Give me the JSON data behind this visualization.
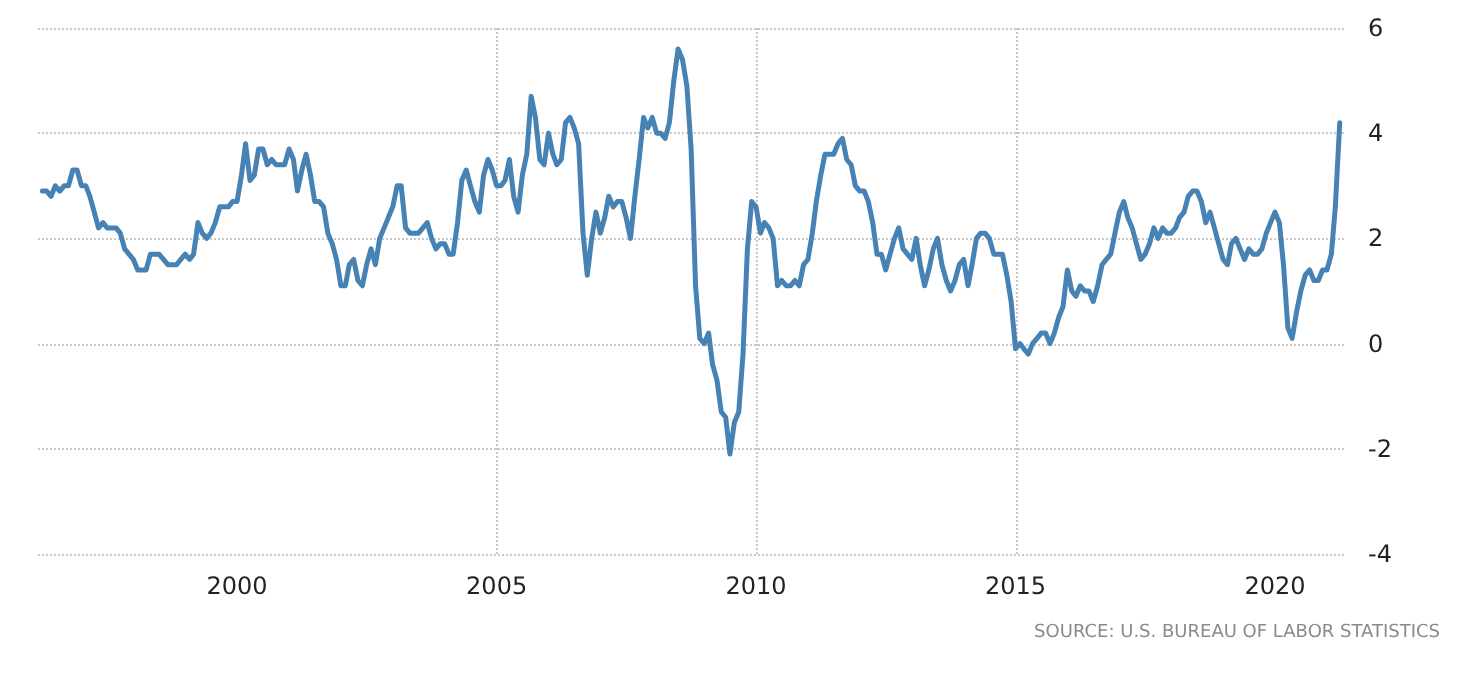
{
  "chart_data": {
    "type": "line",
    "color": "#4682b4",
    "line_style": "solid",
    "marker": "none",
    "grid": true,
    "annotations": [
      "SOURCE: U.S. BUREAU OF LABOR STATISTICS"
    ],
    "xlim": [
      "1996-03",
      "2021-05"
    ],
    "xticks": [
      "2000",
      "2005",
      "2010",
      "2015",
      "2020"
    ],
    "ylim": [
      -4,
      6
    ],
    "yticks": [
      -4,
      -2,
      0,
      2,
      4,
      6
    ],
    "x": [
      "1996-04",
      "1996-05",
      "1996-06",
      "1996-07",
      "1996-08",
      "1996-09",
      "1996-10",
      "1996-11",
      "1996-12",
      "1997-01",
      "1997-02",
      "1997-03",
      "1997-04",
      "1997-05",
      "1997-06",
      "1997-07",
      "1997-08",
      "1997-09",
      "1997-10",
      "1997-11",
      "1997-12",
      "1998-01",
      "1998-02",
      "1998-03",
      "1998-04",
      "1998-05",
      "1998-06",
      "1998-07",
      "1998-08",
      "1998-09",
      "1998-10",
      "1998-11",
      "1998-12",
      "1999-01",
      "1999-02",
      "1999-03",
      "1999-04",
      "1999-05",
      "1999-06",
      "1999-07",
      "1999-08",
      "1999-09",
      "1999-10",
      "1999-11",
      "1999-12",
      "2000-01",
      "2000-02",
      "2000-03",
      "2000-04",
      "2000-05",
      "2000-06",
      "2000-07",
      "2000-08",
      "2000-09",
      "2000-10",
      "2000-11",
      "2000-12",
      "2001-01",
      "2001-02",
      "2001-03",
      "2001-04",
      "2001-05",
      "2001-06",
      "2001-07",
      "2001-08",
      "2001-09",
      "2001-10",
      "2001-11",
      "2001-12",
      "2002-01",
      "2002-02",
      "2002-03",
      "2002-04",
      "2002-05",
      "2002-06",
      "2002-07",
      "2002-08",
      "2002-09",
      "2002-10",
      "2002-11",
      "2002-12",
      "2003-01",
      "2003-02",
      "2003-03",
      "2003-04",
      "2003-05",
      "2003-06",
      "2003-07",
      "2003-08",
      "2003-09",
      "2003-10",
      "2003-11",
      "2003-12",
      "2004-01",
      "2004-02",
      "2004-03",
      "2004-04",
      "2004-05",
      "2004-06",
      "2004-07",
      "2004-08",
      "2004-09",
      "2004-10",
      "2004-11",
      "2004-12",
      "2005-01",
      "2005-02",
      "2005-03",
      "2005-04",
      "2005-05",
      "2005-06",
      "2005-07",
      "2005-08",
      "2005-09",
      "2005-10",
      "2005-11",
      "2005-12",
      "2006-01",
      "2006-02",
      "2006-03",
      "2006-04",
      "2006-05",
      "2006-06",
      "2006-07",
      "2006-08",
      "2006-09",
      "2006-10",
      "2006-11",
      "2006-12",
      "2007-01",
      "2007-02",
      "2007-03",
      "2007-04",
      "2007-05",
      "2007-06",
      "2007-07",
      "2007-08",
      "2007-09",
      "2007-10",
      "2007-11",
      "2007-12",
      "2008-01",
      "2008-02",
      "2008-03",
      "2008-04",
      "2008-05",
      "2008-06",
      "2008-07",
      "2008-08",
      "2008-09",
      "2008-10",
      "2008-11",
      "2008-12",
      "2009-01",
      "2009-02",
      "2009-03",
      "2009-04",
      "2009-05",
      "2009-06",
      "2009-07",
      "2009-08",
      "2009-09",
      "2009-10",
      "2009-11",
      "2009-12",
      "2010-01",
      "2010-02",
      "2010-03",
      "2010-04",
      "2010-05",
      "2010-06",
      "2010-07",
      "2010-08",
      "2010-09",
      "2010-10",
      "2010-11",
      "2010-12",
      "2011-01",
      "2011-02",
      "2011-03",
      "2011-04",
      "2011-05",
      "2011-06",
      "2011-07",
      "2011-08",
      "2011-09",
      "2011-10",
      "2011-11",
      "2011-12",
      "2012-01",
      "2012-02",
      "2012-03",
      "2012-04",
      "2012-05",
      "2012-06",
      "2012-07",
      "2012-08",
      "2012-09",
      "2012-10",
      "2012-11",
      "2012-12",
      "2013-01",
      "2013-02",
      "2013-03",
      "2013-04",
      "2013-05",
      "2013-06",
      "2013-07",
      "2013-08",
      "2013-09",
      "2013-10",
      "2013-11",
      "2013-12",
      "2014-01",
      "2014-02",
      "2014-03",
      "2014-04",
      "2014-05",
      "2014-06",
      "2014-07",
      "2014-08",
      "2014-09",
      "2014-10",
      "2014-11",
      "2014-12",
      "2015-01",
      "2015-02",
      "2015-03",
      "2015-04",
      "2015-05",
      "2015-06",
      "2015-07",
      "2015-08",
      "2015-09",
      "2015-10",
      "2015-11",
      "2015-12",
      "2016-01",
      "2016-02",
      "2016-03",
      "2016-04",
      "2016-05",
      "2016-06",
      "2016-07",
      "2016-08",
      "2016-09",
      "2016-10",
      "2016-11",
      "2016-12",
      "2017-01",
      "2017-02",
      "2017-03",
      "2017-04",
      "2017-05",
      "2017-06",
      "2017-07",
      "2017-08",
      "2017-09",
      "2017-10",
      "2017-11",
      "2017-12",
      "2018-01",
      "2018-02",
      "2018-03",
      "2018-04",
      "2018-05",
      "2018-06",
      "2018-07",
      "2018-08",
      "2018-09",
      "2018-10",
      "2018-11",
      "2018-12",
      "2019-01",
      "2019-02",
      "2019-03",
      "2019-04",
      "2019-05",
      "2019-06",
      "2019-07",
      "2019-08",
      "2019-09",
      "2019-10",
      "2019-11",
      "2019-12",
      "2020-01",
      "2020-02",
      "2020-03",
      "2020-04",
      "2020-05",
      "2020-06",
      "2020-07",
      "2020-08",
      "2020-09",
      "2020-10",
      "2020-11",
      "2020-12",
      "2021-01",
      "2021-02",
      "2021-03",
      "2021-04"
    ],
    "values": [
      2.9,
      2.9,
      2.8,
      3.0,
      2.9,
      3.0,
      3.0,
      3.3,
      3.3,
      3.0,
      3.0,
      2.8,
      2.5,
      2.2,
      2.3,
      2.2,
      2.2,
      2.2,
      2.1,
      1.8,
      1.7,
      1.6,
      1.4,
      1.4,
      1.4,
      1.7,
      1.7,
      1.7,
      1.6,
      1.5,
      1.5,
      1.5,
      1.6,
      1.7,
      1.6,
      1.7,
      2.3,
      2.1,
      2.0,
      2.1,
      2.3,
      2.6,
      2.6,
      2.6,
      2.7,
      2.7,
      3.2,
      3.8,
      3.1,
      3.2,
      3.7,
      3.7,
      3.4,
      3.5,
      3.4,
      3.4,
      3.4,
      3.7,
      3.5,
      2.9,
      3.3,
      3.6,
      3.2,
      2.7,
      2.7,
      2.6,
      2.1,
      1.9,
      1.6,
      1.1,
      1.1,
      1.5,
      1.6,
      1.2,
      1.1,
      1.5,
      1.8,
      1.5,
      2.0,
      2.2,
      2.4,
      2.6,
      3.0,
      3.0,
      2.2,
      2.1,
      2.1,
      2.1,
      2.2,
      2.3,
      2.0,
      1.8,
      1.9,
      1.9,
      1.7,
      1.7,
      2.3,
      3.1,
      3.3,
      3.0,
      2.7,
      2.5,
      3.2,
      3.5,
      3.3,
      3.0,
      3.0,
      3.1,
      3.5,
      2.8,
      2.5,
      3.2,
      3.6,
      4.7,
      4.3,
      3.5,
      3.4,
      4.0,
      3.6,
      3.4,
      3.5,
      4.2,
      4.3,
      4.1,
      3.8,
      2.1,
      1.3,
      2.0,
      2.5,
      2.1,
      2.4,
      2.8,
      2.6,
      2.7,
      2.7,
      2.4,
      2.0,
      2.8,
      3.5,
      4.3,
      4.1,
      4.3,
      4.0,
      4.0,
      3.9,
      4.2,
      5.0,
      5.6,
      5.4,
      4.9,
      3.7,
      1.1,
      0.1,
      0.0,
      0.2,
      -0.4,
      -0.7,
      -1.3,
      -1.4,
      -2.1,
      -1.5,
      -1.3,
      -0.2,
      1.8,
      2.7,
      2.6,
      2.1,
      2.3,
      2.2,
      2.0,
      1.1,
      1.2,
      1.1,
      1.1,
      1.2,
      1.1,
      1.5,
      1.6,
      2.1,
      2.7,
      3.2,
      3.6,
      3.6,
      3.6,
      3.8,
      3.9,
      3.5,
      3.4,
      3.0,
      2.9,
      2.9,
      2.7,
      2.3,
      1.7,
      1.7,
      1.4,
      1.7,
      2.0,
      2.2,
      1.8,
      1.7,
      1.6,
      2.0,
      1.5,
      1.1,
      1.4,
      1.8,
      2.0,
      1.5,
      1.2,
      1.0,
      1.2,
      1.5,
      1.6,
      1.1,
      1.5,
      2.0,
      2.1,
      2.1,
      2.0,
      1.7,
      1.7,
      1.7,
      1.3,
      0.8,
      -0.1,
      0.0,
      -0.1,
      -0.2,
      0.0,
      0.1,
      0.2,
      0.2,
      0.0,
      0.2,
      0.5,
      0.7,
      1.4,
      1.0,
      0.9,
      1.1,
      1.0,
      1.0,
      0.8,
      1.1,
      1.5,
      1.6,
      1.7,
      2.1,
      2.5,
      2.7,
      2.4,
      2.2,
      1.9,
      1.6,
      1.7,
      1.9,
      2.2,
      2.0,
      2.2,
      2.1,
      2.1,
      2.2,
      2.4,
      2.5,
      2.8,
      2.9,
      2.9,
      2.7,
      2.3,
      2.5,
      2.2,
      1.9,
      1.6,
      1.5,
      1.9,
      2.0,
      1.8,
      1.6,
      1.8,
      1.7,
      1.7,
      1.8,
      2.1,
      2.3,
      2.5,
      2.3,
      1.5,
      0.3,
      0.1,
      0.6,
      1.0,
      1.3,
      1.4,
      1.2,
      1.2,
      1.4,
      1.4,
      1.7,
      2.6,
      4.2
    ]
  }
}
